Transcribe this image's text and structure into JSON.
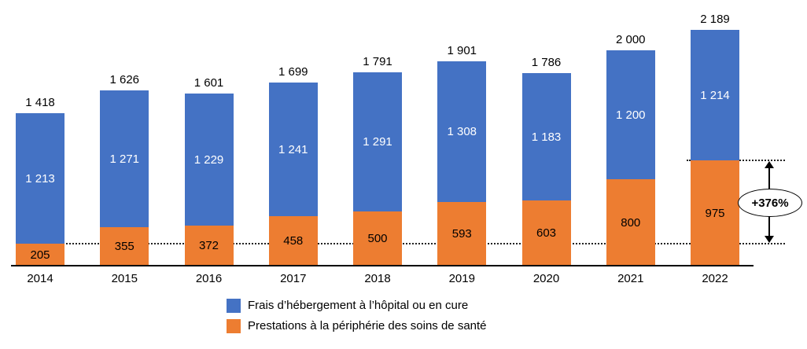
{
  "chart_data": {
    "type": "bar",
    "stacked": true,
    "title": "",
    "xlabel": "",
    "ylabel": "",
    "grid": false,
    "legend_position": "bottom",
    "categories": [
      "2014",
      "2015",
      "2016",
      "2017",
      "2018",
      "2019",
      "2020",
      "2021",
      "2022"
    ],
    "series": [
      {
        "name": "Frais d’hébergement à l’hôpital ou en cure",
        "color": "#4472C4",
        "label_color": "#FFFFFF",
        "values": [
          1213,
          1271,
          1229,
          1241,
          1291,
          1308,
          1183,
          1200,
          1214
        ],
        "labels": [
          "1 213",
          "1 271",
          "1 229",
          "1 241",
          "1 291",
          "1 308",
          "1 183",
          "1 200",
          "1 214"
        ]
      },
      {
        "name": "Prestations à la périphérie des soins de santé",
        "color": "#ED7D31",
        "label_color": "#000000",
        "values": [
          205,
          355,
          372,
          458,
          500,
          593,
          603,
          800,
          975
        ],
        "labels": [
          "205",
          "355",
          "372",
          "458",
          "500",
          "593",
          "603",
          "800",
          "975"
        ]
      }
    ],
    "totals": [
      1418,
      1626,
      1601,
      1699,
      1791,
      1901,
      1786,
      2000,
      2189
    ],
    "total_labels": [
      "1 418",
      "1 626",
      "1 601",
      "1 699",
      "1 791",
      "1 901",
      "1 786",
      "2 000",
      "2 189"
    ],
    "ylim": [
      0,
      2189
    ],
    "annotation": {
      "label": "+376%",
      "from_value": 205,
      "to_value": 975
    }
  }
}
